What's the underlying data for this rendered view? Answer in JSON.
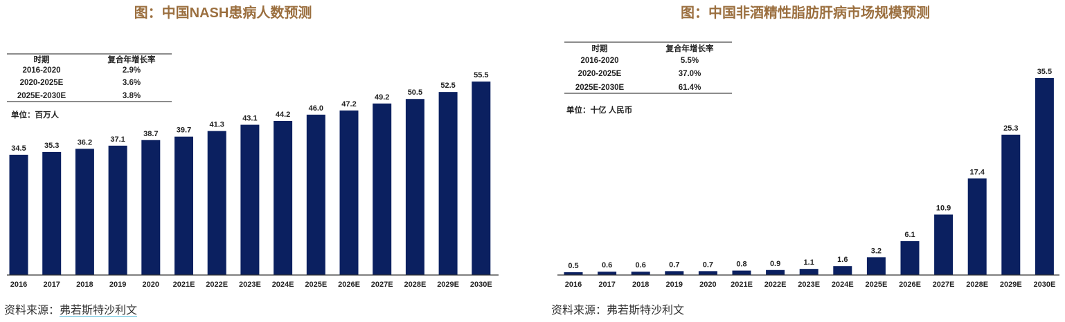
{
  "chart_data": [
    {
      "type": "bar",
      "title": "图：中国NASH患病人数预测",
      "unit": "单位：百万人",
      "categories": [
        "2016",
        "2017",
        "2018",
        "2019",
        "2020",
        "2021E",
        "2022E",
        "2023E",
        "2024E",
        "2025E",
        "2026E",
        "2027E",
        "2028E",
        "2029E",
        "2030E"
      ],
      "values": [
        34.5,
        35.3,
        36.2,
        37.1,
        38.7,
        39.7,
        41.3,
        43.1,
        44.2,
        46.0,
        47.2,
        49.2,
        50.5,
        52.5,
        55.5
      ],
      "value_labels": [
        "34.5",
        "35.3",
        "36.2",
        "37.1",
        "38.7",
        "39.7",
        "41.3",
        "43.1",
        "44.2",
        "46.0",
        "47.2",
        "49.2",
        "50.5",
        "52.5",
        "55.5"
      ],
      "ylim": [
        0,
        56
      ],
      "grid": false,
      "bar_color": "#0b2060",
      "table": {
        "headers": [
          "时期",
          "复合年增长率"
        ],
        "rows": [
          [
            "2016-2020",
            "2.9%"
          ],
          [
            "2020-2025E",
            "3.6%"
          ],
          [
            "2025E-2030E",
            "3.8%"
          ]
        ]
      },
      "source_prefix": "资料来源：",
      "source_name": "弗若斯特沙利文"
    },
    {
      "type": "bar",
      "title": "图：中国非酒精性脂肪肝病市场规模预测",
      "unit": "单位：十亿 人民币",
      "categories": [
        "2016",
        "2017",
        "2018",
        "2019",
        "2020",
        "2021E",
        "2022E",
        "2023E",
        "2024E",
        "2025E",
        "2026E",
        "2027E",
        "2028E",
        "2029E",
        "2030E"
      ],
      "values": [
        0.5,
        0.6,
        0.6,
        0.7,
        0.7,
        0.8,
        0.9,
        1.1,
        1.6,
        3.2,
        6.1,
        10.9,
        17.4,
        25.3,
        35.5
      ],
      "value_labels": [
        "0.5",
        "0.6",
        "0.6",
        "0.7",
        "0.7",
        "0.8",
        "0.9",
        "1.1",
        "1.6",
        "3.2",
        "6.1",
        "10.9",
        "17.4",
        "25.3",
        "35.5"
      ],
      "ylim": [
        0,
        36
      ],
      "grid": false,
      "bar_color": "#0b2060",
      "table": {
        "headers": [
          "时期",
          "复合年增长率"
        ],
        "rows": [
          [
            "2016-2020",
            "5.5%"
          ],
          [
            "2020-2025E",
            "37.0%"
          ],
          [
            "2025E-2030E",
            "61.4%"
          ]
        ]
      },
      "source_prefix": "资料来源：",
      "source_name": "弗若斯特沙利文"
    }
  ]
}
